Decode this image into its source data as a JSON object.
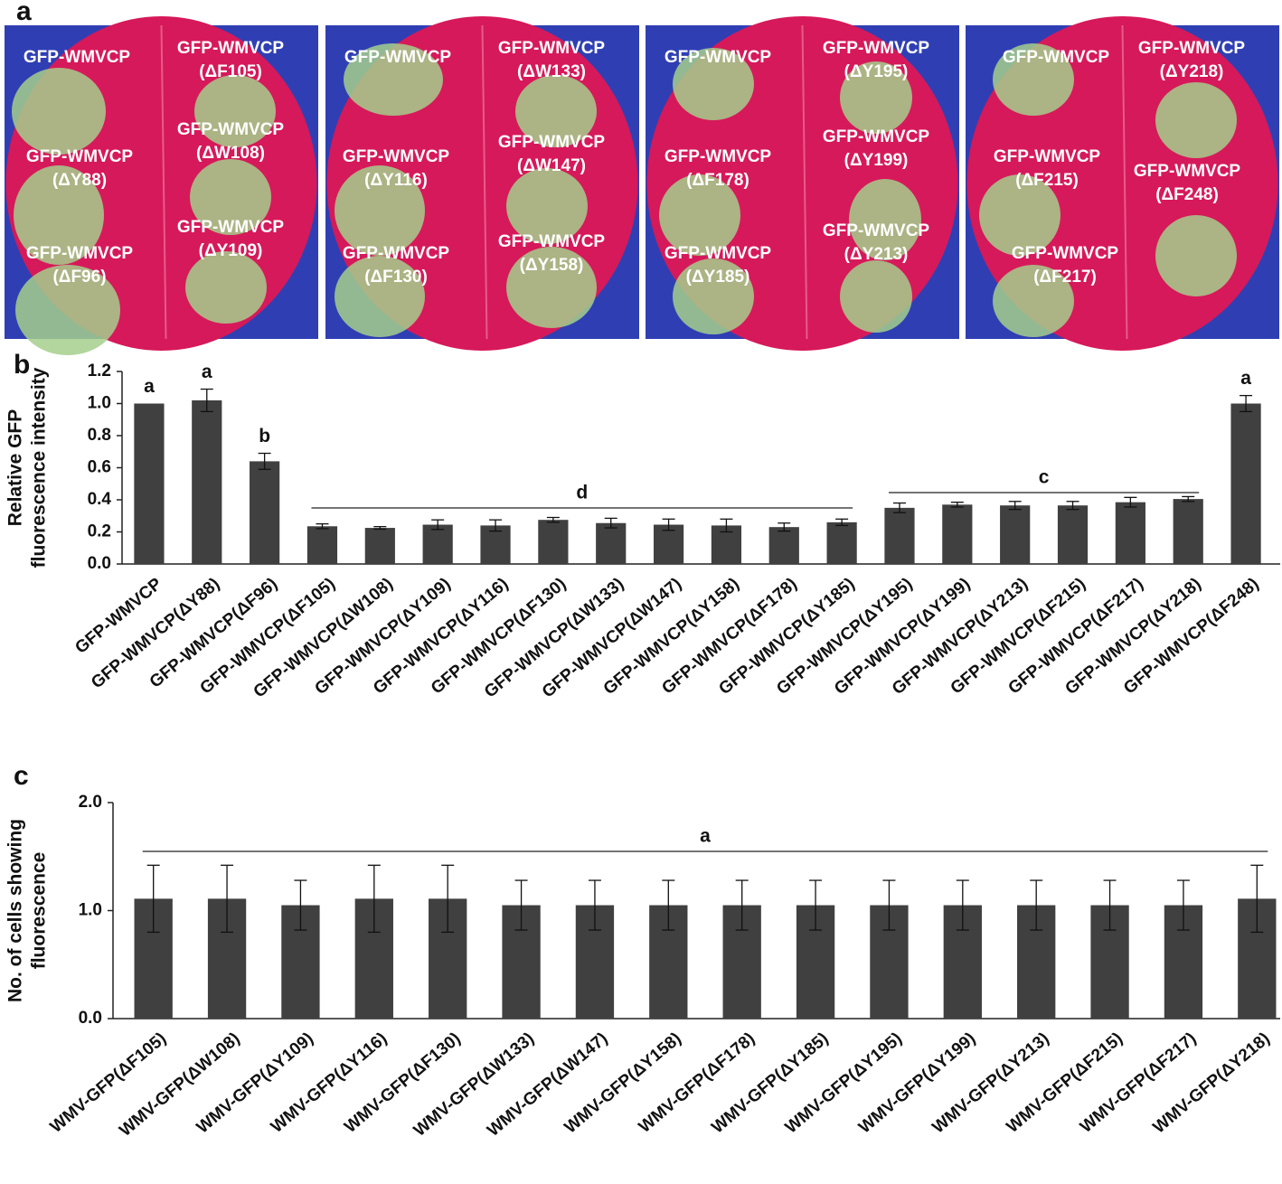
{
  "panel_labels": [
    "a",
    "b",
    "c"
  ],
  "leaves": [
    [
      [
        "GFP-WMVCP"
      ],
      [
        "GFP-WMVCP",
        "(ΔF105)"
      ],
      [
        "GFP-WMVCP",
        "(ΔY88)"
      ],
      [
        "GFP-WMVCP",
        "(ΔW108)"
      ],
      [
        "GFP-WMVCP",
        "(ΔF96)"
      ],
      [
        "GFP-WMVCP",
        "(ΔY109)"
      ]
    ],
    [
      [
        "GFP-WMVCP"
      ],
      [
        "GFP-WMVCP",
        "(ΔW133)"
      ],
      [
        "GFP-WMVCP",
        "(ΔY116)"
      ],
      [
        "GFP-WMVCP",
        "(ΔW147)"
      ],
      [
        "GFP-WMVCP",
        "(ΔF130)"
      ],
      [
        "GFP-WMVCP",
        "(ΔY158)"
      ]
    ],
    [
      [
        "GFP-WMVCP"
      ],
      [
        "GFP-WMVCP",
        "(ΔY195)"
      ],
      [
        "GFP-WMVCP",
        "(ΔF178)"
      ],
      [
        "GFP-WMVCP",
        "(ΔY199)"
      ],
      [
        "GFP-WMVCP",
        "(ΔY185)"
      ],
      [
        "GFP-WMVCP",
        "(ΔY213)"
      ]
    ],
    [
      [
        "GFP-WMVCP"
      ],
      [
        "GFP-WMVCP",
        "(ΔY218)"
      ],
      [
        "GFP-WMVCP",
        "(ΔF215)"
      ],
      [
        "GFP-WMVCP",
        "(ΔF248)"
      ],
      [
        "GFP-WMVCP",
        "(ΔF217)"
      ]
    ]
  ],
  "chart_data": [
    {
      "type": "bar",
      "ylabel": [
        "Relative GFP",
        "fluorescence intensity"
      ],
      "color": "#404040",
      "categories": [
        "GFP-WMVCP",
        "GFP-WMVCP(ΔY88)",
        "GFP-WMVCP(ΔF96)",
        "GFP-WMVCP(ΔF105)",
        "GFP-WMVCP(ΔW108)",
        "GFP-WMVCP(ΔY109)",
        "GFP-WMVCP(ΔY116)",
        "GFP-WMVCP(ΔF130)",
        "GFP-WMVCP(ΔW133)",
        "GFP-WMVCP(ΔW147)",
        "GFP-WMVCP(ΔY158)",
        "GFP-WMVCP(ΔF178)",
        "GFP-WMVCP(ΔY185)",
        "GFP-WMVCP(ΔY195)",
        "GFP-WMVCP(ΔY199)",
        "GFP-WMVCP(ΔY213)",
        "GFP-WMVCP(ΔF215)",
        "GFP-WMVCP(ΔF217)",
        "GFP-WMVCP(ΔY218)",
        "GFP-WMVCP(ΔF248)"
      ],
      "values": [
        1.0,
        1.02,
        0.64,
        0.235,
        0.225,
        0.245,
        0.24,
        0.275,
        0.255,
        0.245,
        0.24,
        0.23,
        0.26,
        0.35,
        0.37,
        0.365,
        0.365,
        0.385,
        0.405,
        1.0
      ],
      "errors": [
        0,
        0.07,
        0.05,
        0.015,
        0.008,
        0.03,
        0.035,
        0.015,
        0.03,
        0.035,
        0.04,
        0.025,
        0.02,
        0.03,
        0.015,
        0.025,
        0.025,
        0.03,
        0.015,
        0.05
      ],
      "annotations": [
        "a",
        "a",
        "b",
        "d",
        "c",
        "a"
      ],
      "ylim": [
        0,
        1.2
      ],
      "yticks": [
        {
          "value": 0,
          "label": "0.0"
        },
        0.2,
        0.4,
        0.6,
        0.8,
        {
          "value": 1,
          "label": "1.0"
        },
        1.2
      ]
    },
    {
      "type": "bar",
      "ylabel": [
        "No. of cells  showing",
        "fluorescence"
      ],
      "color": "#404040",
      "categories": [
        "WMV-GFP(ΔF105)",
        "WMV-GFP(ΔW108)",
        "WMV-GFP(ΔY109)",
        "WMV-GFP(ΔY116)",
        "WMV-GFP(ΔF130)",
        "WMV-GFP(ΔW133)",
        "WMV-GFP(ΔW147)",
        "WMV-GFP(ΔY158)",
        "WMV-GFP(ΔF178)",
        "WMV-GFP(ΔY185)",
        "WMV-GFP(ΔY195)",
        "WMV-GFP(ΔY199)",
        "WMV-GFP(ΔY213)",
        "WMV-GFP(ΔF215)",
        "WMV-GFP(ΔF217)",
        "WMV-GFP(ΔY218)"
      ],
      "values": [
        1.11,
        1.11,
        1.05,
        1.11,
        1.11,
        1.05,
        1.05,
        1.05,
        1.05,
        1.05,
        1.05,
        1.05,
        1.05,
        1.05,
        1.05,
        1.11
      ],
      "errors": [
        0.31,
        0.31,
        0.23,
        0.31,
        0.31,
        0.23,
        0.23,
        0.23,
        0.23,
        0.23,
        0.23,
        0.23,
        0.23,
        0.23,
        0.23,
        0.31
      ],
      "annotations": [
        "a"
      ],
      "ylim": [
        0,
        2
      ],
      "yticks": [
        {
          "value": 0,
          "label": "0.0"
        },
        {
          "value": 1,
          "label": "1.0"
        },
        {
          "value": 2,
          "label": "2.0"
        }
      ]
    }
  ]
}
